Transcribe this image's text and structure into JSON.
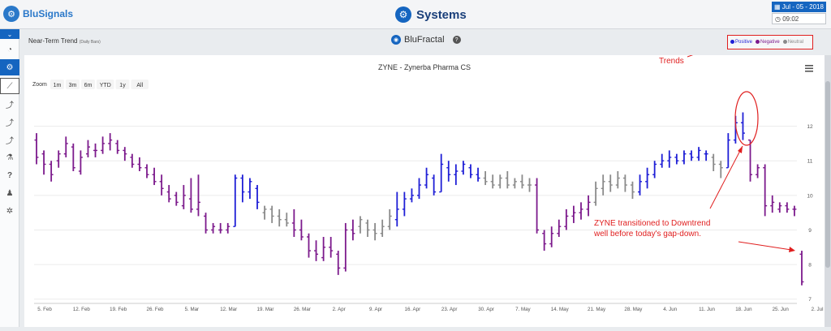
{
  "app": {
    "logo_text": "BluSignals",
    "page_title": "Systems"
  },
  "header": {
    "date_label": "Jul - 05 - 2018",
    "time_label": "09:02"
  },
  "panel": {
    "title": "Near-Term Trend",
    "subtitle": "(Daily Bars)",
    "brand": "BluFractal"
  },
  "legend": {
    "positive": "Positive",
    "negative": "Negative",
    "neutral": "Neutral"
  },
  "colors": {
    "positive": "#1f1fd6",
    "negative": "#7c1a8c",
    "neutral": "#8a8a8a",
    "annotation": "#e01f1f",
    "brand_blue": "#1565c0"
  },
  "chart_data": {
    "type": "ohlc",
    "title": "ZYNE - Zynerba Pharma CS",
    "zoom_label": "Zoom",
    "zoom_buttons": [
      "1m",
      "3m",
      "6m",
      "YTD",
      "1y",
      "All"
    ],
    "x_tick_labels": [
      "5. Feb",
      "12. Feb",
      "19. Feb",
      "26. Feb",
      "5. Mar",
      "12. Mar",
      "19. Mar",
      "26. Mar",
      "2. Apr",
      "9. Apr",
      "16. Apr",
      "23. Apr",
      "30. Apr",
      "7. May",
      "14. May",
      "21. May",
      "28. May",
      "4. Jun",
      "11. Jun",
      "18. Jun",
      "25. Jun",
      "2. Jul"
    ],
    "y_ticks": [
      7,
      8,
      9,
      10,
      11,
      12
    ],
    "ylim": [
      6.9,
      12.6
    ],
    "legend_placement": "top-right",
    "annotations": [
      {
        "text": "Trends"
      },
      {
        "text_lines": [
          "ZYNE transitioned to Downtrend",
          "well before today's gap-down."
        ]
      }
    ],
    "bars": [
      [
        "N",
        11.8,
        10.9,
        11.6,
        11.1
      ],
      [
        "N",
        11.3,
        10.6,
        11.2,
        10.9
      ],
      [
        "N",
        11.0,
        10.4,
        10.9,
        10.6
      ],
      [
        "N",
        11.3,
        10.8,
        11.0,
        11.2
      ],
      [
        "N",
        11.7,
        11.1,
        11.2,
        11.5
      ],
      [
        "N",
        11.5,
        10.7,
        11.4,
        10.8
      ],
      [
        "N",
        11.3,
        10.6,
        10.7,
        11.1
      ],
      [
        "N",
        11.6,
        11.1,
        11.2,
        11.4
      ],
      [
        "N",
        11.5,
        11.1,
        11.3,
        11.3
      ],
      [
        "N",
        11.7,
        11.2,
        11.3,
        11.5
      ],
      [
        "N",
        11.8,
        11.3,
        11.5,
        11.6
      ],
      [
        "N",
        11.6,
        11.2,
        11.5,
        11.3
      ],
      [
        "N",
        11.4,
        11.0,
        11.3,
        11.2
      ],
      [
        "N",
        11.2,
        10.8,
        11.1,
        10.9
      ],
      [
        "N",
        11.1,
        10.7,
        10.9,
        10.8
      ],
      [
        "N",
        10.9,
        10.5,
        10.8,
        10.6
      ],
      [
        "N",
        10.8,
        10.3,
        10.6,
        10.4
      ],
      [
        "N",
        10.6,
        10.0,
        10.4,
        10.2
      ],
      [
        "N",
        10.3,
        9.8,
        10.1,
        9.9
      ],
      [
        "N",
        10.1,
        9.7,
        10.0,
        9.8
      ],
      [
        "N",
        10.3,
        9.6,
        9.7,
        10.0
      ],
      [
        "N",
        10.5,
        9.5,
        9.9,
        9.6
      ],
      [
        "N",
        10.6,
        9.4,
        9.6,
        9.8
      ],
      [
        "N",
        9.5,
        8.9,
        9.4,
        9.0
      ],
      [
        "N",
        9.2,
        8.9,
        9.0,
        9.1
      ],
      [
        "N",
        9.2,
        8.9,
        9.0,
        9.0
      ],
      [
        "N",
        9.2,
        8.9,
        9.0,
        9.1
      ],
      [
        "P",
        10.6,
        9.1,
        9.1,
        10.5
      ],
      [
        "P",
        10.6,
        9.8,
        10.5,
        10.1
      ],
      [
        "P",
        10.5,
        9.9,
        10.1,
        10.4
      ],
      [
        "P",
        10.3,
        9.6,
        10.2,
        9.8
      ],
      [
        "Z",
        9.7,
        9.3,
        9.5,
        9.6
      ],
      [
        "Z",
        9.7,
        9.2,
        9.6,
        9.4
      ],
      [
        "Z",
        9.6,
        9.1,
        9.4,
        9.3
      ],
      [
        "Z",
        9.5,
        9.1,
        9.3,
        9.2
      ],
      [
        "N",
        9.6,
        8.8,
        9.2,
        9.0
      ],
      [
        "N",
        9.3,
        8.7,
        9.0,
        8.8
      ],
      [
        "N",
        8.9,
        8.2,
        8.8,
        8.4
      ],
      [
        "N",
        8.7,
        8.1,
        8.4,
        8.3
      ],
      [
        "N",
        8.8,
        8.1,
        8.2,
        8.5
      ],
      [
        "N",
        8.8,
        8.2,
        8.5,
        8.4
      ],
      [
        "N",
        8.4,
        7.7,
        8.3,
        7.9
      ],
      [
        "N",
        9.2,
        7.8,
        7.9,
        9.0
      ],
      [
        "N",
        9.3,
        8.7,
        9.0,
        8.9
      ],
      [
        "Z",
        9.4,
        8.9,
        9.1,
        9.3
      ],
      [
        "Z",
        9.3,
        8.8,
        9.2,
        9.0
      ],
      [
        "Z",
        9.2,
        8.7,
        9.0,
        8.9
      ],
      [
        "Z",
        9.3,
        8.8,
        8.9,
        9.1
      ],
      [
        "Z",
        9.6,
        9.0,
        9.1,
        9.4
      ],
      [
        "P",
        10.1,
        9.1,
        9.3,
        9.6
      ],
      [
        "P",
        10.1,
        9.4,
        9.6,
        9.9
      ],
      [
        "P",
        10.2,
        9.8,
        9.9,
        10.0
      ],
      [
        "P",
        10.5,
        9.9,
        10.0,
        10.3
      ],
      [
        "P",
        10.8,
        10.2,
        10.3,
        10.6
      ],
      [
        "P",
        10.6,
        10.0,
        10.5,
        10.1
      ],
      [
        "P",
        11.2,
        10.1,
        10.1,
        10.9
      ],
      [
        "P",
        11.0,
        10.4,
        10.8,
        10.6
      ],
      [
        "P",
        10.9,
        10.3,
        10.6,
        10.7
      ],
      [
        "P",
        11.0,
        10.6,
        10.7,
        10.9
      ],
      [
        "P",
        10.9,
        10.5,
        10.8,
        10.6
      ],
      [
        "P",
        10.8,
        10.4,
        10.6,
        10.5
      ],
      [
        "Z",
        10.7,
        10.3,
        10.5,
        10.4
      ],
      [
        "Z",
        10.6,
        10.2,
        10.4,
        10.3
      ],
      [
        "Z",
        10.6,
        10.2,
        10.3,
        10.5
      ],
      [
        "Z",
        10.7,
        10.2,
        10.5,
        10.3
      ],
      [
        "Z",
        10.5,
        10.2,
        10.3,
        10.4
      ],
      [
        "Z",
        10.6,
        10.2,
        10.4,
        10.3
      ],
      [
        "Z",
        10.5,
        10.1,
        10.3,
        10.3
      ],
      [
        "N",
        10.5,
        8.9,
        10.3,
        9.0
      ],
      [
        "N",
        9.0,
        8.4,
        8.9,
        8.6
      ],
      [
        "N",
        9.1,
        8.5,
        8.6,
        8.9
      ],
      [
        "N",
        9.3,
        8.8,
        8.9,
        9.1
      ],
      [
        "N",
        9.6,
        9.0,
        9.1,
        9.4
      ],
      [
        "N",
        9.7,
        9.2,
        9.4,
        9.5
      ],
      [
        "N",
        9.8,
        9.3,
        9.5,
        9.6
      ],
      [
        "N",
        10.0,
        9.4,
        9.6,
        9.8
      ],
      [
        "Z",
        10.4,
        9.7,
        9.8,
        10.2
      ],
      [
        "Z",
        10.6,
        10.0,
        10.2,
        10.4
      ],
      [
        "Z",
        10.6,
        10.1,
        10.4,
        10.3
      ],
      [
        "Z",
        10.7,
        10.2,
        10.3,
        10.5
      ],
      [
        "Z",
        10.6,
        10.1,
        10.5,
        10.3
      ],
      [
        "Z",
        10.4,
        9.9,
        10.3,
        10.1
      ],
      [
        "P",
        10.6,
        10.0,
        10.1,
        10.4
      ],
      [
        "P",
        10.8,
        10.2,
        10.4,
        10.6
      ],
      [
        "P",
        11.0,
        10.5,
        10.6,
        10.9
      ],
      [
        "P",
        11.2,
        10.8,
        10.9,
        11.0
      ],
      [
        "P",
        11.3,
        10.8,
        11.0,
        11.1
      ],
      [
        "P",
        11.2,
        10.9,
        11.1,
        11.0
      ],
      [
        "P",
        11.3,
        10.9,
        11.0,
        11.2
      ],
      [
        "P",
        11.3,
        11.0,
        11.2,
        11.1
      ],
      [
        "P",
        11.4,
        11.0,
        11.1,
        11.3
      ],
      [
        "P",
        11.3,
        11.0,
        11.2,
        11.2
      ],
      [
        "Z",
        11.2,
        10.7,
        11.1,
        10.9
      ],
      [
        "Z",
        11.0,
        10.5,
        10.9,
        10.8
      ],
      [
        "P",
        11.8,
        10.8,
        10.8,
        11.6
      ],
      [
        "P",
        12.3,
        11.5,
        11.6,
        12.1
      ],
      [
        "P",
        12.4,
        11.6,
        12.1,
        11.8
      ],
      [
        "N",
        11.6,
        10.4,
        11.6,
        10.6
      ],
      [
        "N",
        10.9,
        10.5,
        10.6,
        10.8
      ],
      [
        "N",
        10.9,
        9.4,
        10.8,
        9.7
      ],
      [
        "N",
        10.0,
        9.5,
        9.7,
        9.8
      ],
      [
        "N",
        9.8,
        9.5,
        9.6,
        9.7
      ],
      [
        "N",
        9.8,
        9.5,
        9.7,
        9.6
      ],
      [
        "N",
        9.7,
        9.4,
        9.6,
        9.6
      ],
      [
        "N",
        8.4,
        7.4,
        8.3,
        7.5
      ]
    ]
  }
}
